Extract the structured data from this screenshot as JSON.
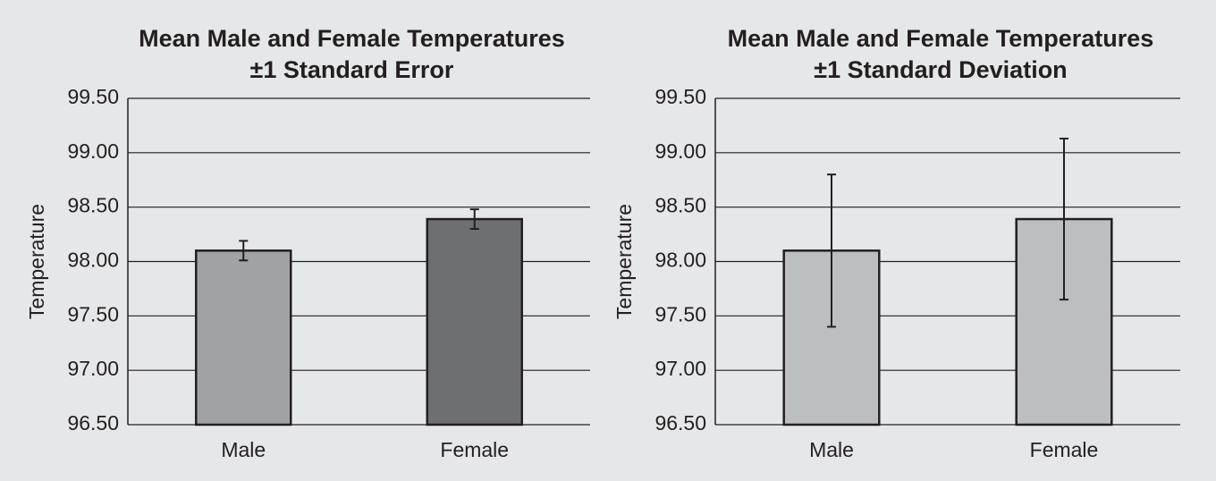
{
  "chart_data": [
    {
      "type": "bar",
      "title": "Mean Male and Female Temperatures",
      "subtitle": "±1 Standard Error",
      "ylabel": "Temperature",
      "categories": [
        "Male",
        "Female"
      ],
      "values": [
        98.1,
        98.39
      ],
      "errors": [
        0.09,
        0.09
      ],
      "colors": [
        "#a1a2a4",
        "#6e6f71"
      ],
      "ylim": [
        96.5,
        99.5
      ],
      "yticks": [
        {
          "value": 96.5,
          "label": "96.50"
        },
        {
          "value": 97,
          "label": "97.00"
        },
        {
          "value": 97.5,
          "label": "97.50"
        },
        {
          "value": 98,
          "label": "98.00"
        },
        {
          "value": 98.5,
          "label": "98.50"
        },
        {
          "value": 99,
          "label": "99.00"
        },
        {
          "value": 99.5,
          "label": "99.50"
        }
      ],
      "grid": true
    },
    {
      "type": "bar",
      "title": "Mean Male and Female Temperatures",
      "subtitle": "±1 Standard Deviation",
      "ylabel": "Temperature",
      "categories": [
        "Male",
        "Female"
      ],
      "values": [
        98.1,
        98.39
      ],
      "errors": [
        0.7,
        0.74
      ],
      "colors": [
        "#bdbec0",
        "#bdbec0"
      ],
      "ylim": [
        96.5,
        99.5
      ],
      "yticks": [
        {
          "value": 96.5,
          "label": "96.50"
        },
        {
          "value": 97,
          "label": "97.00"
        },
        {
          "value": 97.5,
          "label": "97.50"
        },
        {
          "value": 98,
          "label": "98.00"
        },
        {
          "value": 98.5,
          "label": "98.50"
        },
        {
          "value": 99,
          "label": "99.00"
        },
        {
          "value": 99.5,
          "label": "99.50"
        }
      ],
      "grid": true
    }
  ]
}
